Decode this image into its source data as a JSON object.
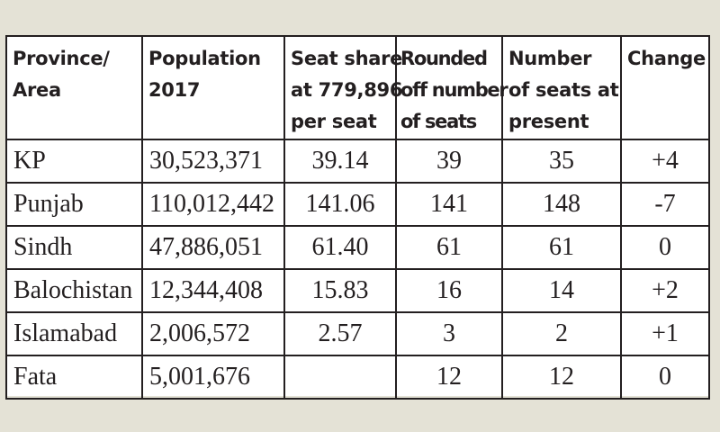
{
  "table": {
    "headers": [
      [
        "Province/",
        "Area"
      ],
      [
        "Population",
        "2017"
      ],
      [
        "Seat share",
        "at 779,896",
        "per seat"
      ],
      [
        "Rounded",
        "off number",
        "of seats"
      ],
      [
        "Number",
        "of seats at",
        "present"
      ],
      [
        "Change"
      ]
    ],
    "rows": [
      {
        "province": "KP",
        "population": "30,523,371",
        "seat_share": "39.14",
        "rounded_seats": "39",
        "present_seats": "35",
        "change": "+4"
      },
      {
        "province": "Punjab",
        "population": "110,012,442",
        "seat_share": "141.06",
        "rounded_seats": "141",
        "present_seats": "148",
        "change": "-7"
      },
      {
        "province": "Sindh",
        "population": "47,886,051",
        "seat_share": "61.40",
        "rounded_seats": "61",
        "present_seats": "61",
        "change": "0"
      },
      {
        "province": "Balochistan",
        "population": "12,344,408",
        "seat_share": "15.83",
        "rounded_seats": "16",
        "present_seats": "14",
        "change": "+2"
      },
      {
        "province": "Islamabad",
        "population": "2,006,572",
        "seat_share": "2.57",
        "rounded_seats": "3",
        "present_seats": "2",
        "change": "+1"
      },
      {
        "province": "Fata",
        "population": "5,001,676",
        "seat_share": "",
        "rounded_seats": "12",
        "present_seats": "12",
        "change": "0"
      }
    ]
  }
}
